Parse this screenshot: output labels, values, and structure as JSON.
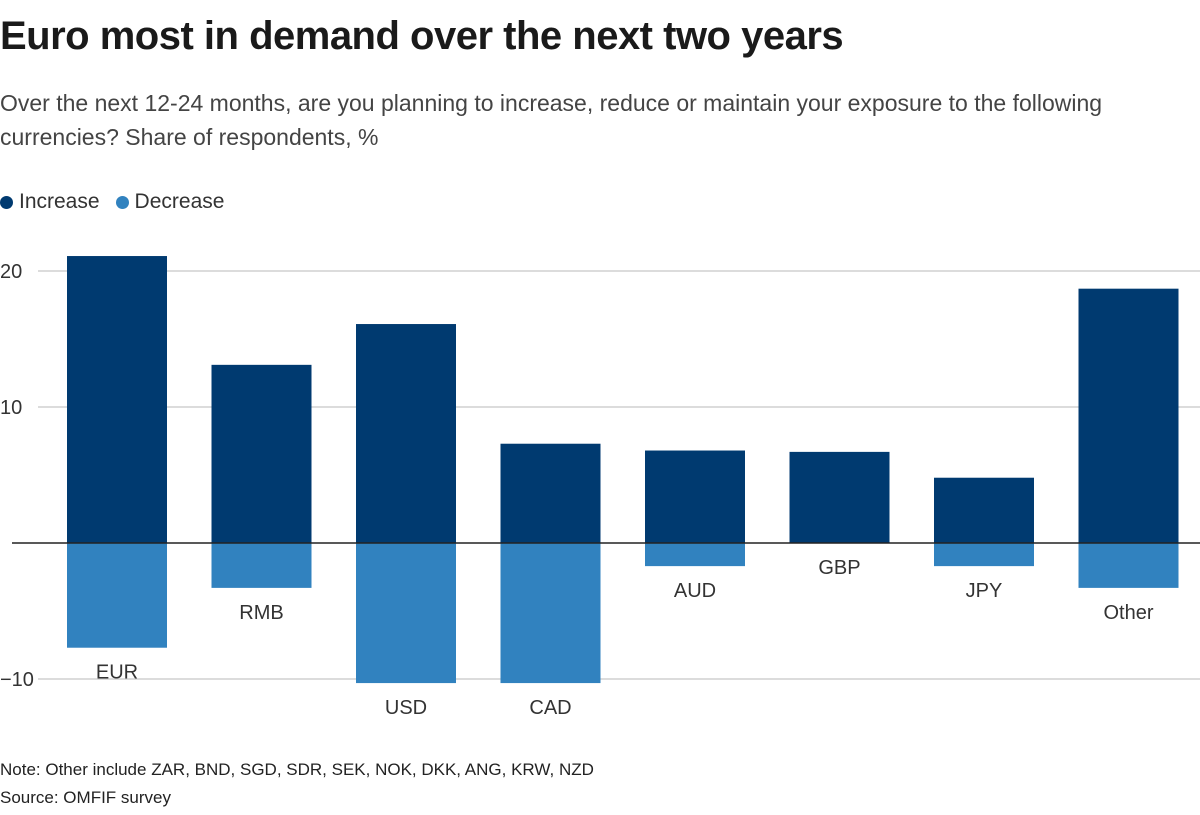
{
  "title": "Euro most in demand over the next two years",
  "subtitle": "Over the next 12-24 months, are you planning to increase, reduce or maintain your exposure to the following currencies? Share of respondents, %",
  "legend": [
    {
      "label": "Increase",
      "color": "#003a70"
    },
    {
      "label": "Decrease",
      "color": "#3182bf"
    }
  ],
  "chart_data": {
    "type": "bar",
    "stacked": "diverging",
    "categories": [
      "EUR",
      "RMB",
      "USD",
      "CAD",
      "AUD",
      "GBP",
      "JPY",
      "Other"
    ],
    "series": [
      {
        "name": "Increase",
        "color": "#003a70",
        "values": [
          21.1,
          13.1,
          16.1,
          7.3,
          6.8,
          6.7,
          4.8,
          18.7
        ]
      },
      {
        "name": "Decrease",
        "color": "#3182bf",
        "values": [
          -7.7,
          -3.3,
          -10.3,
          -10.3,
          -1.7,
          0,
          -1.7,
          -3.3
        ]
      }
    ],
    "y_ticks": [
      20,
      10,
      -10
    ],
    "y_tick_labels": [
      "20",
      "10",
      "−10"
    ],
    "ylim": [
      -10.5,
      22
    ],
    "grid": true,
    "legend_position": "top-left"
  },
  "footer": {
    "note": "Note: Other include ZAR, BND, SGD, SDR, SEK, NOK, DKK, ANG, KRW, NZD",
    "source": "Source: OMFIF survey"
  }
}
